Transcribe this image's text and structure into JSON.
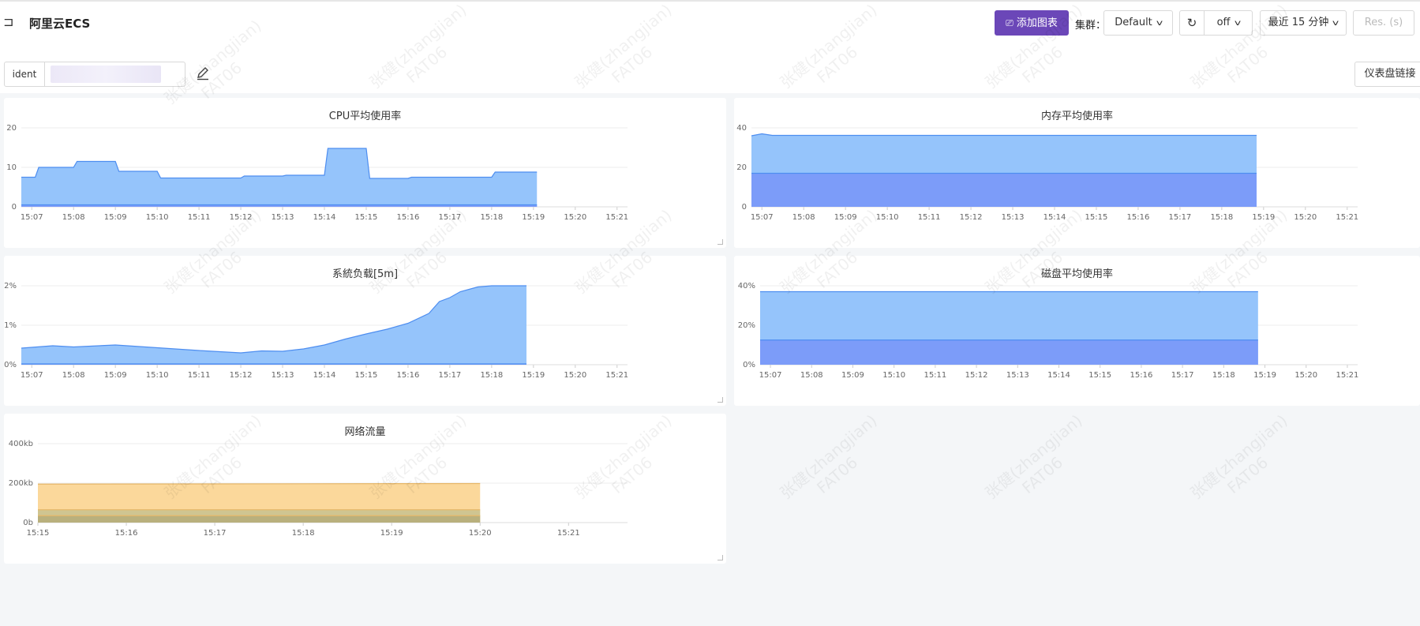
{
  "header": {
    "title": "阿里云ECS",
    "add_chart_label": "添加图表",
    "cluster_label": "集群：",
    "cluster_value": "Default",
    "refresh_value": "off",
    "time_range": "最近 15 分钟",
    "resolution_placeholder": "Res. (s)"
  },
  "filter": {
    "ident_label": "ident",
    "dashboard_link_label": "仪表盘链接"
  },
  "watermark": {
    "name": "张健(zhangjian)",
    "code": "FAT06"
  },
  "colors": {
    "primary": "#6b47b8",
    "series_blue_light": "#95c4fb",
    "series_blue_dark": "#7c9cf9",
    "series_orange": "#fbd89b",
    "series_olive": "#b9b07d"
  },
  "chart_data": [
    {
      "id": "cpu",
      "type": "area",
      "title": "CPU平均使用率",
      "x": [
        "15:07",
        "15:08",
        "15:09",
        "15:10",
        "15:11",
        "15:12",
        "15:13",
        "15:14",
        "15:15",
        "15:16",
        "15:17",
        "15:18",
        "15:19",
        "15:20",
        "15:21"
      ],
      "y_ticks": [
        "0",
        "10",
        "20"
      ],
      "ylim": [
        0,
        20
      ],
      "xlim": [
        "15:06:45",
        "15:21:15"
      ],
      "series": [
        {
          "points": [
            [
              "15:06:45",
              7.5
            ],
            [
              "15:07:05",
              7.5
            ],
            [
              "15:07:10",
              10
            ],
            [
              "15:08",
              10
            ],
            [
              "15:08:05",
              11.5
            ],
            [
              "15:09",
              11.5
            ],
            [
              "15:09:05",
              9
            ],
            [
              "15:10",
              9
            ],
            [
              "15:10:05",
              7.3
            ],
            [
              "15:12",
              7.3
            ],
            [
              "15:12:05",
              7.8
            ],
            [
              "15:13",
              7.8
            ],
            [
              "15:13:05",
              8
            ],
            [
              "15:14",
              8
            ],
            [
              "15:14:05",
              14.8
            ],
            [
              "15:15",
              14.8
            ],
            [
              "15:15:05",
              7.2
            ],
            [
              "15:16",
              7.2
            ],
            [
              "15:16:05",
              7.5
            ],
            [
              "15:18",
              7.5
            ],
            [
              "15:18:05",
              8.8
            ],
            [
              "15:19:05",
              8.8
            ]
          ]
        },
        {
          "points": [
            [
              "15:06:45",
              0.5
            ],
            [
              "15:19:05",
              0.5
            ]
          ]
        }
      ]
    },
    {
      "id": "memory",
      "type": "area",
      "title": "内存平均使用率",
      "x": [
        "15:07",
        "15:08",
        "15:09",
        "15:10",
        "15:11",
        "15:12",
        "15:13",
        "15:14",
        "15:15",
        "15:16",
        "15:17",
        "15:18",
        "15:19",
        "15:20",
        "15:21"
      ],
      "y_ticks": [
        "0",
        "20",
        "40"
      ],
      "ylim": [
        0,
        40
      ],
      "xlim": [
        "15:06:45",
        "15:21:15"
      ],
      "series": [
        {
          "points": [
            [
              "15:06:45",
              36
            ],
            [
              "15:07",
              37
            ],
            [
              "15:07:15",
              36.2
            ],
            [
              "15:18:50",
              36.2
            ]
          ]
        },
        {
          "points": [
            [
              "15:06:45",
              17
            ],
            [
              "15:18:50",
              17
            ]
          ]
        }
      ]
    },
    {
      "id": "load",
      "type": "area",
      "title": "系統负载[5m]",
      "x": [
        "15:07",
        "15:08",
        "15:09",
        "15:10",
        "15:11",
        "15:12",
        "15:13",
        "15:14",
        "15:15",
        "15:16",
        "15:17",
        "15:18",
        "15:19",
        "15:20",
        "15:21"
      ],
      "y_ticks": [
        "0%",
        "1%",
        "2%"
      ],
      "ylim": [
        0,
        2
      ],
      "xlim": [
        "15:06:45",
        "15:21:15"
      ],
      "series": [
        {
          "points": [
            [
              "15:06:45",
              0.42
            ],
            [
              "15:07:30",
              0.48
            ],
            [
              "15:08",
              0.45
            ],
            [
              "15:09",
              0.5
            ],
            [
              "15:10",
              0.43
            ],
            [
              "15:11",
              0.36
            ],
            [
              "15:12",
              0.3
            ],
            [
              "15:12:30",
              0.35
            ],
            [
              "15:13",
              0.34
            ],
            [
              "15:13:30",
              0.4
            ],
            [
              "15:14",
              0.5
            ],
            [
              "15:14:30",
              0.65
            ],
            [
              "15:15",
              0.78
            ],
            [
              "15:15:30",
              0.9
            ],
            [
              "15:16",
              1.05
            ],
            [
              "15:16:30",
              1.3
            ],
            [
              "15:16:45",
              1.6
            ],
            [
              "15:17",
              1.7
            ],
            [
              "15:17:15",
              1.85
            ],
            [
              "15:17:40",
              1.97
            ],
            [
              "15:18",
              2.0
            ],
            [
              "15:18:50",
              2.0
            ]
          ]
        },
        {
          "points": [
            [
              "15:06:45",
              0.02
            ],
            [
              "15:18:50",
              0.02
            ]
          ]
        }
      ]
    },
    {
      "id": "disk",
      "type": "area",
      "title": "磁盘平均使用率",
      "x": [
        "15:07",
        "15:08",
        "15:09",
        "15:10",
        "15:11",
        "15:12",
        "15:13",
        "15:14",
        "15:15",
        "15:16",
        "15:17",
        "15:18",
        "15:19",
        "15:20",
        "15:21"
      ],
      "y_ticks": [
        "0%",
        "20%",
        "40%"
      ],
      "ylim": [
        0,
        40
      ],
      "xlim": [
        "15:06:45",
        "15:21:15"
      ],
      "series": [
        {
          "points": [
            [
              "15:06:45",
              37
            ],
            [
              "15:18:50",
              37
            ]
          ]
        },
        {
          "points": [
            [
              "15:06:45",
              12.5
            ],
            [
              "15:18:50",
              12.5
            ]
          ]
        }
      ]
    },
    {
      "id": "network",
      "type": "area",
      "title": "网络流量",
      "x": [
        "15:15",
        "15:16",
        "15:17",
        "15:18",
        "15:19",
        "15:20",
        "15:21"
      ],
      "y_ticks": [
        "0b",
        "200kb",
        "400kb"
      ],
      "ylim": [
        0,
        400
      ],
      "xlim": [
        "15:15",
        "15:21:40"
      ],
      "series": [
        {
          "points": [
            [
              "15:15",
              195
            ],
            [
              "15:20",
              198
            ]
          ]
        },
        {
          "points": [
            [
              "15:15",
              65
            ],
            [
              "15:20",
              65
            ]
          ]
        },
        {
          "points": [
            [
              "15:15",
              35
            ],
            [
              "15:20",
              35
            ]
          ]
        }
      ]
    }
  ]
}
